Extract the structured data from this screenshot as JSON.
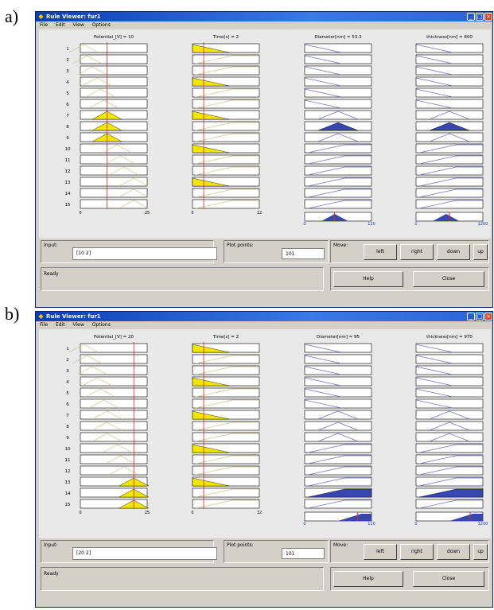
{
  "window_title": "Rule Viewer: fur1",
  "menus": [
    "File",
    "Edit",
    "View",
    "Options"
  ],
  "rule_numbers": [
    "1",
    "2",
    "3",
    "4",
    "5",
    "6",
    "7",
    "8",
    "9",
    "10",
    "11",
    "12",
    "13",
    "14",
    "15"
  ],
  "panels": [
    {
      "tag": "a)",
      "var_titles": [
        "Potential_[V] = 10",
        "Time[s] = 2",
        "Diameter[nm] = 53.3",
        "thickness[nm] = 600"
      ],
      "ranges": [
        [
          "0",
          "25"
        ],
        [
          "0",
          "12"
        ],
        [
          "0",
          "120"
        ],
        [
          "0",
          "1200"
        ]
      ],
      "input_line_fraction": [
        0.4,
        0.167
      ],
      "aggregate_line_fraction": [
        0.444,
        0.5
      ],
      "input_value": "[10 2]",
      "plot_points": "101",
      "status": "Ready"
    },
    {
      "tag": "b)",
      "var_titles": [
        "Potential_[V] = 20",
        "Time[s] = 2",
        "Diameter[nm] = 95",
        "thickness[nm] = 970"
      ],
      "ranges": [
        [
          "0",
          "25"
        ],
        [
          "0",
          "12"
        ],
        [
          "0",
          "120"
        ],
        [
          "0",
          "1200"
        ]
      ],
      "input_line_fraction": [
        0.8,
        0.167
      ],
      "aggregate_line_fraction": [
        0.79,
        0.81
      ],
      "input_value": "[20 2]",
      "plot_points": "101",
      "status": "Ready"
    }
  ],
  "labels": {
    "input": "Input:",
    "plot_points": "Plot points:",
    "move": "Move:",
    "left": "left",
    "right": "right",
    "down": "down",
    "up": "up",
    "help": "Help",
    "close": "Close"
  }
}
